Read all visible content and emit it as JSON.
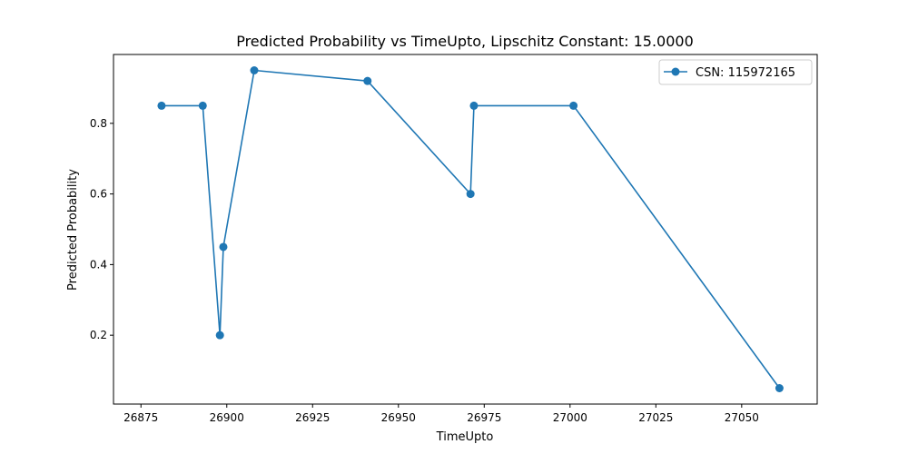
{
  "chart_data": {
    "type": "line",
    "title": "Predicted Probability vs TimeUpto, Lipschitz Constant: 15.0000",
    "xlabel": "TimeUpto",
    "ylabel": "Predicted Probability",
    "xlim": [
      26867,
      27072
    ],
    "ylim": [
      0.005,
      0.995
    ],
    "xticks": [
      26875,
      26900,
      26925,
      26950,
      26975,
      27000,
      27025,
      27050
    ],
    "yticks": [
      0.2,
      0.4,
      0.6,
      0.8
    ],
    "xtick_labels": [
      "26875",
      "26900",
      "26925",
      "26950",
      "26975",
      "27000",
      "27025",
      "27050"
    ],
    "ytick_labels": [
      "0.2",
      "0.4",
      "0.6",
      "0.8"
    ],
    "grid": false,
    "legend_position": "top-right",
    "series": [
      {
        "name": "CSN: 115972165",
        "color": "#1f77b4",
        "marker": "circle",
        "x": [
          26881,
          26893,
          26898,
          26899,
          26908,
          26941,
          26971,
          26972,
          27001,
          27061
        ],
        "y": [
          0.85,
          0.85,
          0.2,
          0.45,
          0.95,
          0.92,
          0.6,
          0.85,
          0.85,
          0.05
        ]
      }
    ]
  }
}
